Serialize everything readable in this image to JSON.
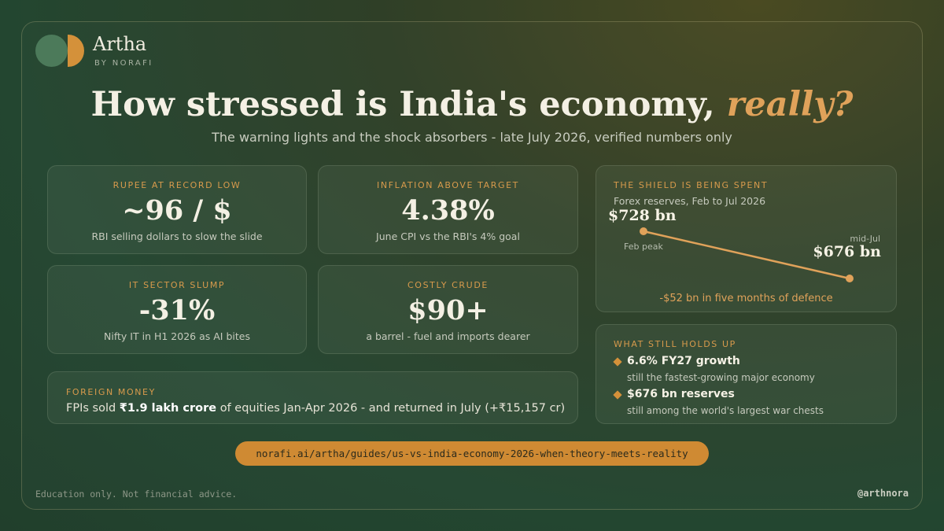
{
  "brand": {
    "name": "Artha",
    "tagline": "BY NORAFI"
  },
  "headline": {
    "main": "How stressed is India's economy, ",
    "accent": "really?"
  },
  "subtitle": "The warning lights and the shock absorbers - late July 2026, verified numbers only",
  "stats": [
    {
      "label": "RUPEE AT RECORD LOW",
      "value": "~96 / $",
      "desc": "RBI selling dollars to slow the slide"
    },
    {
      "label": "INFLATION ABOVE TARGET",
      "value": "4.38%",
      "desc": "June CPI vs the RBI's 4% goal"
    },
    {
      "label": "IT SECTOR SLUMP",
      "value": "-31%",
      "desc": "Nifty IT in H1 2026 as AI bites"
    },
    {
      "label": "COSTLY CRUDE",
      "value": "$90+",
      "desc": "a barrel - fuel and imports dearer"
    }
  ],
  "foreign_money": {
    "label": "FOREIGN MONEY",
    "prefix": "FPIs sold ",
    "highlight": "₹1.9 lakh crore",
    "suffix": " of equities Jan-Apr 2026 - and returned in July (+₹15,157 cr)"
  },
  "shield": {
    "label": "THE SHIELD IS BEING SPENT",
    "subtitle": "Forex reserves, Feb to Jul 2026",
    "start": {
      "value_label": "$728 bn",
      "tag": "Feb peak"
    },
    "end": {
      "value_label": "$676 bn",
      "tag": "mid-Jul"
    },
    "note": "-$52 bn in five months of defence"
  },
  "chart_data": {
    "type": "line",
    "x": [
      "Feb peak",
      "mid-Jul"
    ],
    "series": [
      {
        "values": [
          728,
          676
        ]
      }
    ],
    "ylabel": "",
    "line_color": "#e0a25a"
  },
  "holds": {
    "label": "WHAT STILL HOLDS UP",
    "items": [
      {
        "head": "6.6% FY27 growth",
        "sub": "still the fastest-growing major economy"
      },
      {
        "head": "$676 bn reserves",
        "sub": "still among the world's largest war chests"
      }
    ]
  },
  "url": "norafi.ai/artha/guides/us-vs-india-economy-2026-when-theory-meets-reality",
  "disclaimer": "Education only. Not financial advice.",
  "handle": "@arthnora",
  "colors": {
    "accent": "#d4913a",
    "accent_text": "#e0a25a",
    "background": "#234630"
  }
}
